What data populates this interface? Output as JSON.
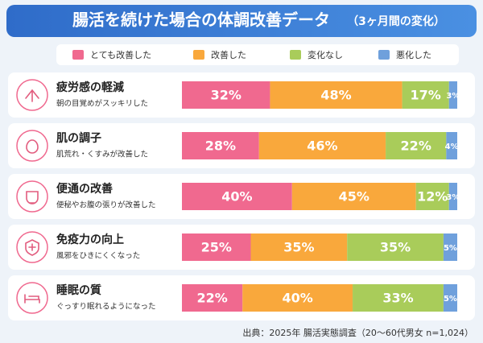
{
  "chart_data": {
    "type": "stacked_bar_horizontal",
    "title": "腸活を続けた場合の体調改善データ",
    "title_note": "（3ヶ月間の変化）",
    "categories": [
      "疲労感の軽減",
      "肌の調子",
      "便通の改善",
      "免疫力の向上",
      "睡眠の質"
    ],
    "category_notes": [
      "朝の目覚めがスッキリした",
      "肌荒れ・くすみが改善した",
      "便秘やお腹の張りが改善した",
      "風邪をひきにくくなった",
      "ぐっすり眠れるようになった"
    ],
    "xlim": [
      0,
      100
    ],
    "series": [
      {
        "name": "とても改善した",
        "color": "#f0698f",
        "values": [
          32,
          28,
          40,
          25,
          22
        ],
        "value_labels": [
          "32%",
          "28%",
          "40%",
          "25%",
          "22%"
        ]
      },
      {
        "name": "改善した",
        "color": "#f9a83c",
        "values": [
          48,
          46,
          45,
          35,
          40
        ],
        "value_labels": [
          "48%",
          "46%",
          "45%",
          "35%",
          "40%"
        ]
      },
      {
        "name": "変化なし",
        "color": "#a9cc5a",
        "values": [
          17,
          22,
          12,
          35,
          33
        ],
        "value_labels": [
          "17%",
          "22%",
          "12%",
          "35%",
          "33%"
        ]
      },
      {
        "name": "悪化した",
        "color": "#6fa0dc",
        "values": [
          3,
          4,
          3,
          5,
          5
        ],
        "value_labels": [
          "3%",
          "4%",
          "3%",
          "5%",
          "5%"
        ]
      }
    ],
    "source": "出典：2025年 腸活実態調査（20〜60代男女 n=1,024）"
  }
}
